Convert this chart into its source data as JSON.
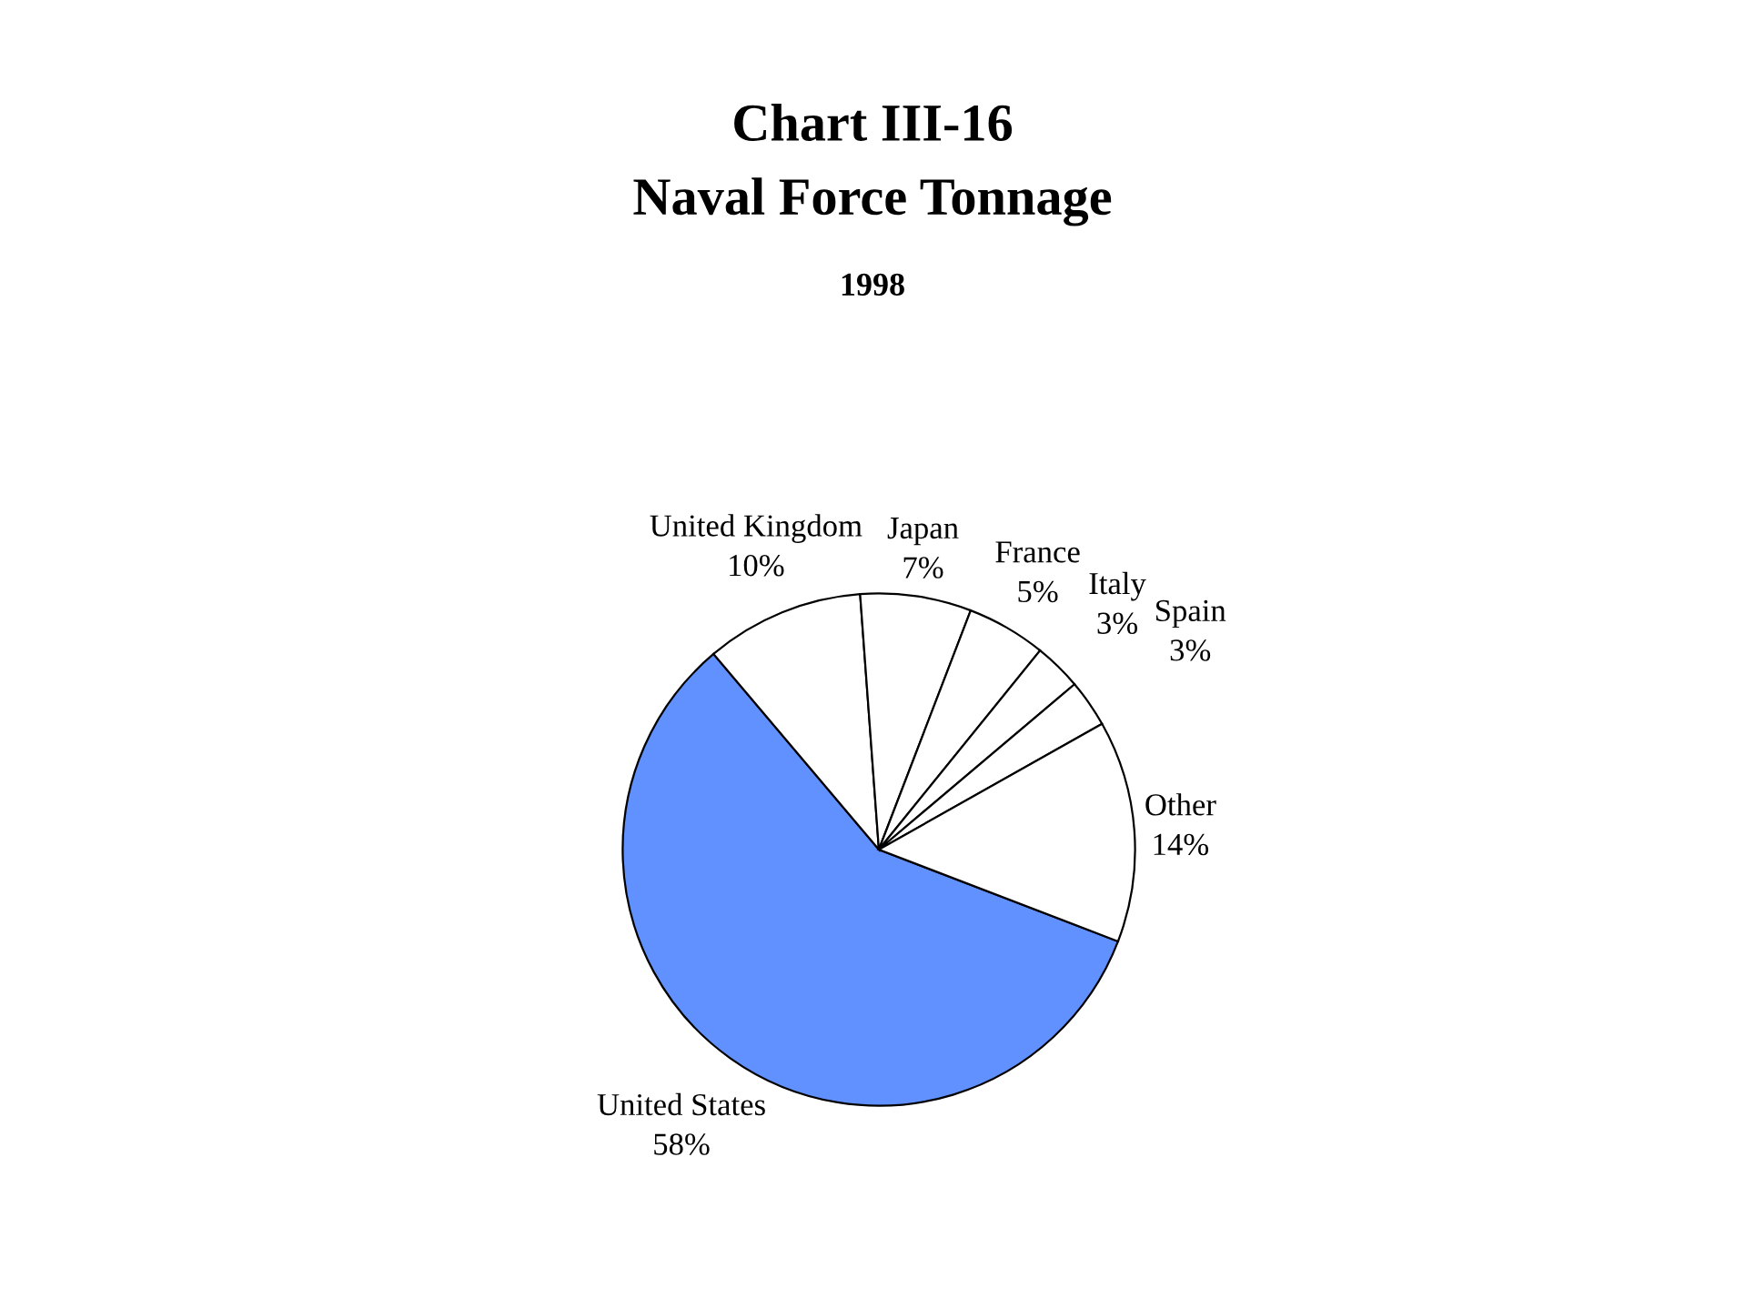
{
  "chart_data": {
    "type": "pie",
    "title": "Chart III-16\nNaval Force Tonnage",
    "subtitle": "1998",
    "categories": [
      "United States",
      "United Kingdom",
      "Japan",
      "France",
      "Italy",
      "Spain",
      "Other"
    ],
    "values": [
      58,
      10,
      7,
      5,
      3,
      3,
      14
    ],
    "value_labels": [
      "58%",
      "10%",
      "7%",
      "5%",
      "3%",
      "3%",
      "14%"
    ],
    "colors": [
      "#6190ff",
      "#ffffff",
      "#ffffff",
      "#ffffff",
      "#ffffff",
      "#ffffff",
      "#ffffff"
    ]
  }
}
